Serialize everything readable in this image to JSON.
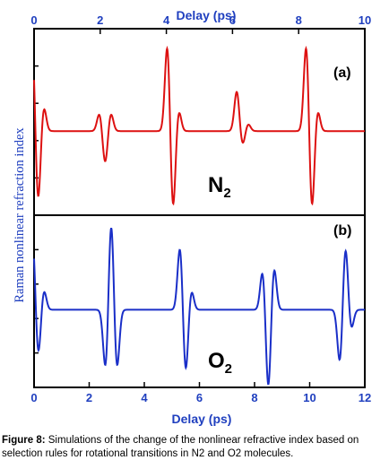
{
  "colors": {
    "panel_a_trace": "#dd1111",
    "panel_b_trace": "#1a2fc8",
    "axis_text": "#1f3fbf"
  },
  "y_axis_label": "Raman nonlinear refraction index",
  "caption": {
    "lead": "Figure 8:",
    "text": " Simulations of the change of the nonlinear refractive index based on selection rules for rotational transitions in N2 and O2 molecules."
  },
  "chart_data": [
    {
      "type": "line",
      "panel": "(a)",
      "species": "N",
      "species_subscript": "2",
      "xlabel": "Delay (ps)",
      "xaxis_position": "top",
      "xlim": [
        0,
        10
      ],
      "xticks": [
        0,
        2,
        4,
        6,
        8,
        10
      ],
      "ylim": [
        -1.15,
        1.4
      ],
      "series": [
        {
          "color": "#dd1111",
          "baseline": 0,
          "features": [
            {
              "center": 0.12,
              "amplitudes": [
                1.2,
                -1.0,
                0.35
              ]
            },
            {
              "center": 2.15,
              "amplitudes": [
                0.25,
                -0.45,
                0.25
              ]
            },
            {
              "center": 4.2,
              "amplitudes": [
                1.2,
                -1.1,
                0.3
              ]
            },
            {
              "center": 6.3,
              "amplitudes": [
                0.55,
                -0.2,
                0.1
              ]
            },
            {
              "center": 8.4,
              "amplitudes": [
                1.2,
                -1.1,
                0.3
              ]
            }
          ]
        }
      ]
    },
    {
      "type": "line",
      "panel": "(b)",
      "species": "O",
      "species_subscript": "2",
      "xlabel": "Delay (ps)",
      "xaxis_position": "bottom",
      "xlim": [
        0,
        12
      ],
      "xticks": [
        0,
        2,
        4,
        6,
        8,
        10,
        12
      ],
      "ylim": [
        -1.15,
        1.4
      ],
      "series": [
        {
          "color": "#1a2fc8",
          "baseline": 0,
          "features": [
            {
              "center": 0.15,
              "amplitudes": [
                1.1,
                -0.7,
                0.3
              ]
            },
            {
              "center": 2.8,
              "amplitudes": [
                -0.9,
                1.35,
                -0.9
              ]
            },
            {
              "center": 5.5,
              "amplitudes": [
                0.95,
                -0.95,
                0.3
              ]
            },
            {
              "center": 8.5,
              "amplitudes": [
                0.6,
                -1.2,
                0.65
              ]
            },
            {
              "center": 11.3,
              "amplitudes": [
                -0.8,
                0.95,
                -0.3
              ]
            }
          ]
        }
      ]
    }
  ]
}
